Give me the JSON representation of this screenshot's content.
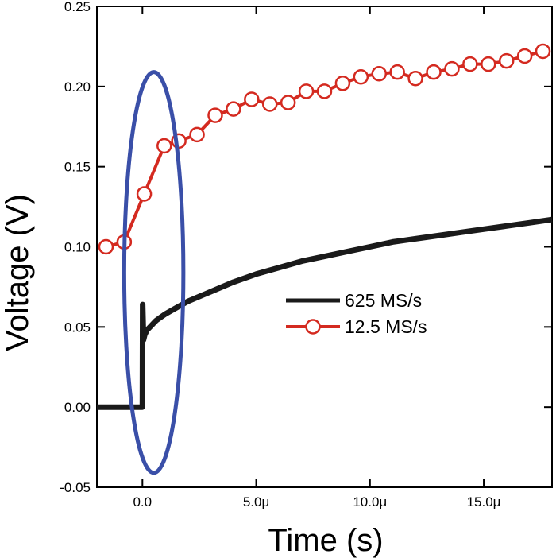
{
  "chart_data": {
    "type": "line",
    "xlabel": "Time (s)",
    "ylabel": "Voltage (V)",
    "xlim": [
      -2e-06,
      1.8e-05
    ],
    "ylim": [
      -0.05,
      0.25
    ],
    "x_ticks": [
      {
        "value": 0.0,
        "label": "0.0"
      },
      {
        "value": 5e-06,
        "label": "5.0μ"
      },
      {
        "value": 1e-05,
        "label": "10.0μ"
      },
      {
        "value": 1.5e-05,
        "label": "15.0μ"
      }
    ],
    "y_ticks": [
      {
        "value": -0.05,
        "label": "-0.05"
      },
      {
        "value": 0.0,
        "label": "0.00"
      },
      {
        "value": 0.05,
        "label": "0.05"
      },
      {
        "value": 0.1,
        "label": "0.10"
      },
      {
        "value": 0.15,
        "label": "0.15"
      },
      {
        "value": 0.2,
        "label": "0.20"
      },
      {
        "value": 0.25,
        "label": "0.25"
      }
    ],
    "legend_position": "center-right",
    "grid": false,
    "series": [
      {
        "name": "625 MS/s",
        "color": "#1a1a1a",
        "marker": "none",
        "x": [
          -2e-06,
          -1.5e-06,
          -1e-06,
          -5e-07,
          -1e-07,
          0.0,
          1e-08,
          5e-08,
          1e-07,
          2e-07,
          4e-07,
          6e-07,
          8e-07,
          1e-06,
          1.5e-06,
          2e-06,
          3e-06,
          4e-06,
          5e-06,
          6e-06,
          7e-06,
          8e-06,
          9e-06,
          1e-05,
          1.1e-05,
          1.2e-05,
          1.3e-05,
          1.4e-05,
          1.5e-05,
          1.6e-05,
          1.7e-05,
          1.8e-05
        ],
        "y": [
          0.0,
          0.0,
          0.0,
          0.0,
          0.0,
          0.0,
          0.064,
          0.042,
          0.045,
          0.048,
          0.051,
          0.054,
          0.056,
          0.058,
          0.062,
          0.066,
          0.072,
          0.078,
          0.083,
          0.087,
          0.091,
          0.094,
          0.097,
          0.1,
          0.103,
          0.105,
          0.107,
          0.109,
          0.111,
          0.113,
          0.115,
          0.117
        ]
      },
      {
        "name": "12.5 MS/s",
        "color": "#d42a20",
        "marker": "open-circle",
        "x": [
          -1.6e-06,
          -8e-07,
          8e-08,
          9.6e-07,
          1.6e-06,
          2.4e-06,
          3.2e-06,
          4e-06,
          4.8e-06,
          5.6e-06,
          6.4e-06,
          7.2e-06,
          8e-06,
          8.8e-06,
          9.6e-06,
          1.04e-05,
          1.12e-05,
          1.2e-05,
          1.28e-05,
          1.36e-05,
          1.44e-05,
          1.52e-05,
          1.6e-05,
          1.68e-05,
          1.76e-05
        ],
        "y": [
          0.1,
          0.103,
          0.133,
          0.163,
          0.166,
          0.17,
          0.182,
          0.186,
          0.192,
          0.189,
          0.19,
          0.197,
          0.197,
          0.202,
          0.206,
          0.208,
          0.209,
          0.205,
          0.209,
          0.211,
          0.214,
          0.214,
          0.216,
          0.219,
          0.222
        ]
      }
    ],
    "annotations": [
      {
        "type": "ellipse",
        "color": "#3a4fa8",
        "cx": 5e-07,
        "cy": 0.084,
        "rx": 1.3e-06,
        "ry": 0.125
      }
    ]
  }
}
